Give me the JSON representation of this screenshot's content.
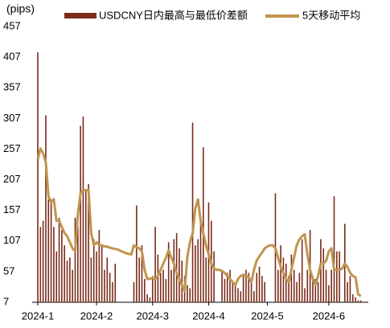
{
  "chart_data": {
    "type": "bar_line",
    "y_unit": "(pips)",
    "categories": [
      "2024-1",
      null,
      null,
      null,
      null,
      null,
      null,
      null,
      null,
      null,
      null,
      null,
      null,
      null,
      null,
      null,
      null,
      null,
      null,
      null,
      null,
      null,
      "2024-2",
      null,
      null,
      null,
      null,
      null,
      null,
      null,
      null,
      null,
      null,
      null,
      null,
      null,
      null,
      null,
      null,
      null,
      null,
      null,
      null,
      "2024-3",
      null,
      null,
      null,
      null,
      null,
      null,
      null,
      null,
      null,
      null,
      null,
      null,
      null,
      null,
      null,
      null,
      null,
      null,
      null,
      null,
      "2024-4",
      null,
      null,
      null,
      null,
      null,
      null,
      null,
      null,
      null,
      null,
      null,
      null,
      null,
      null,
      null,
      null,
      null,
      null,
      null,
      null,
      null,
      "2024-5",
      null,
      null,
      null,
      null,
      null,
      null,
      null,
      null,
      null,
      null,
      null,
      null,
      null,
      null,
      null,
      null,
      null,
      null,
      null,
      null,
      null,
      null,
      "2024-6",
      null,
      null,
      null,
      null,
      null,
      null,
      null,
      null,
      null,
      null,
      null,
      null
    ],
    "series": [
      {
        "name": "USDCNY日内最高与最低价差额",
        "kind": "bar",
        "color": "#7b2c1a",
        "values": [
          415,
          130,
          140,
          312,
          175,
          175,
          130,
          90,
          145,
          125,
          100,
          75,
          80,
          60,
          145,
          130,
          295,
          310,
          190,
          200,
          80,
          110,
          90,
          125,
          100,
          60,
          80,
          55,
          40,
          70,
          null,
          null,
          null,
          null,
          null,
          null,
          40,
          165,
          80,
          100,
          45,
          20,
          15,
          50,
          130,
          85,
          55,
          60,
          45,
          105,
          60,
          110,
          120,
          95,
          75,
          50,
          35,
          30,
          300,
          100,
          110,
          150,
          260,
          80,
          170,
          140,
          90,
          null,
          null,
          60,
          45,
          55,
          60,
          40,
          35,
          30,
          25,
          50,
          60,
          55,
          45,
          25,
          55,
          65,
          50,
          40,
          null,
          null,
          null,
          185,
          60,
          100,
          80,
          70,
          50,
          85,
          60,
          40,
          55,
          110,
          30,
          60,
          125,
          50,
          45,
          40,
          110,
          95,
          60,
          35,
          60,
          180,
          90,
          90,
          null,
          135,
          40,
          50,
          20,
          15,
          10,
          10
        ]
      },
      {
        "name": "5天移动平均",
        "kind": "line",
        "color": "#c0954e",
        "values": [
          240,
          258,
          250,
          235,
          180,
          170,
          175,
          140,
          140,
          130,
          120,
          115,
          105,
          95,
          90,
          150,
          185,
          190,
          190,
          190,
          120,
          100,
          105,
          100,
          100,
          98,
          98,
          96,
          95,
          94,
          93,
          91,
          89,
          87,
          86,
          85,
          100,
          97,
          95,
          90,
          60,
          45,
          45,
          47,
          45,
          50,
          60,
          70,
          80,
          92,
          80,
          70,
          55,
          45,
          35,
          25,
          80,
          105,
          120,
          160,
          175,
          140,
          120,
          100,
          85,
          70,
          62,
          60,
          60,
          58,
          55,
          50,
          45,
          40,
          35,
          45,
          50,
          52,
          50,
          48,
          40,
          60,
          75,
          82,
          88,
          95,
          98,
          100,
          100,
          95,
          80,
          65,
          55,
          45,
          40,
          60,
          80,
          100,
          110,
          115,
          118,
          85,
          60,
          45,
          35,
          50,
          70,
          70,
          75,
          90,
          95,
          60,
          60,
          60,
          62,
          70,
          65,
          55,
          50,
          48,
          20,
          17
        ]
      }
    ],
    "ylim": [
      7,
      457
    ],
    "yticks": [
      7,
      57,
      107,
      157,
      207,
      257,
      307,
      357,
      407,
      457
    ]
  }
}
